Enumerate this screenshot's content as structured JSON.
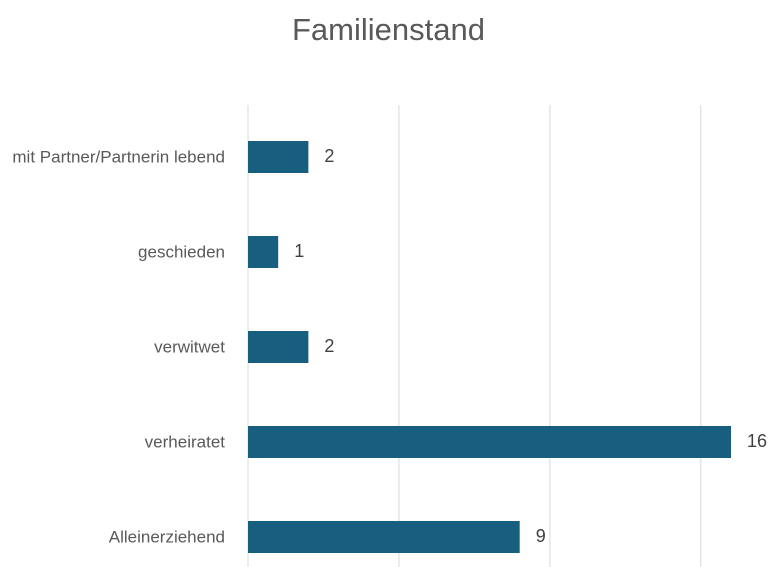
{
  "chart_data": {
    "type": "bar",
    "orientation": "horizontal",
    "title": "Familienstand",
    "categories": [
      "mit Partner/Partnerin lebend",
      "geschieden",
      "verwitwet",
      "verheiratet",
      "Alleinerziehend"
    ],
    "values": [
      2,
      1,
      2,
      16,
      9
    ],
    "color": "#175e7f",
    "xlim": [
      0,
      16
    ],
    "xticks": [
      0,
      5,
      10,
      15
    ],
    "grid": true
  }
}
